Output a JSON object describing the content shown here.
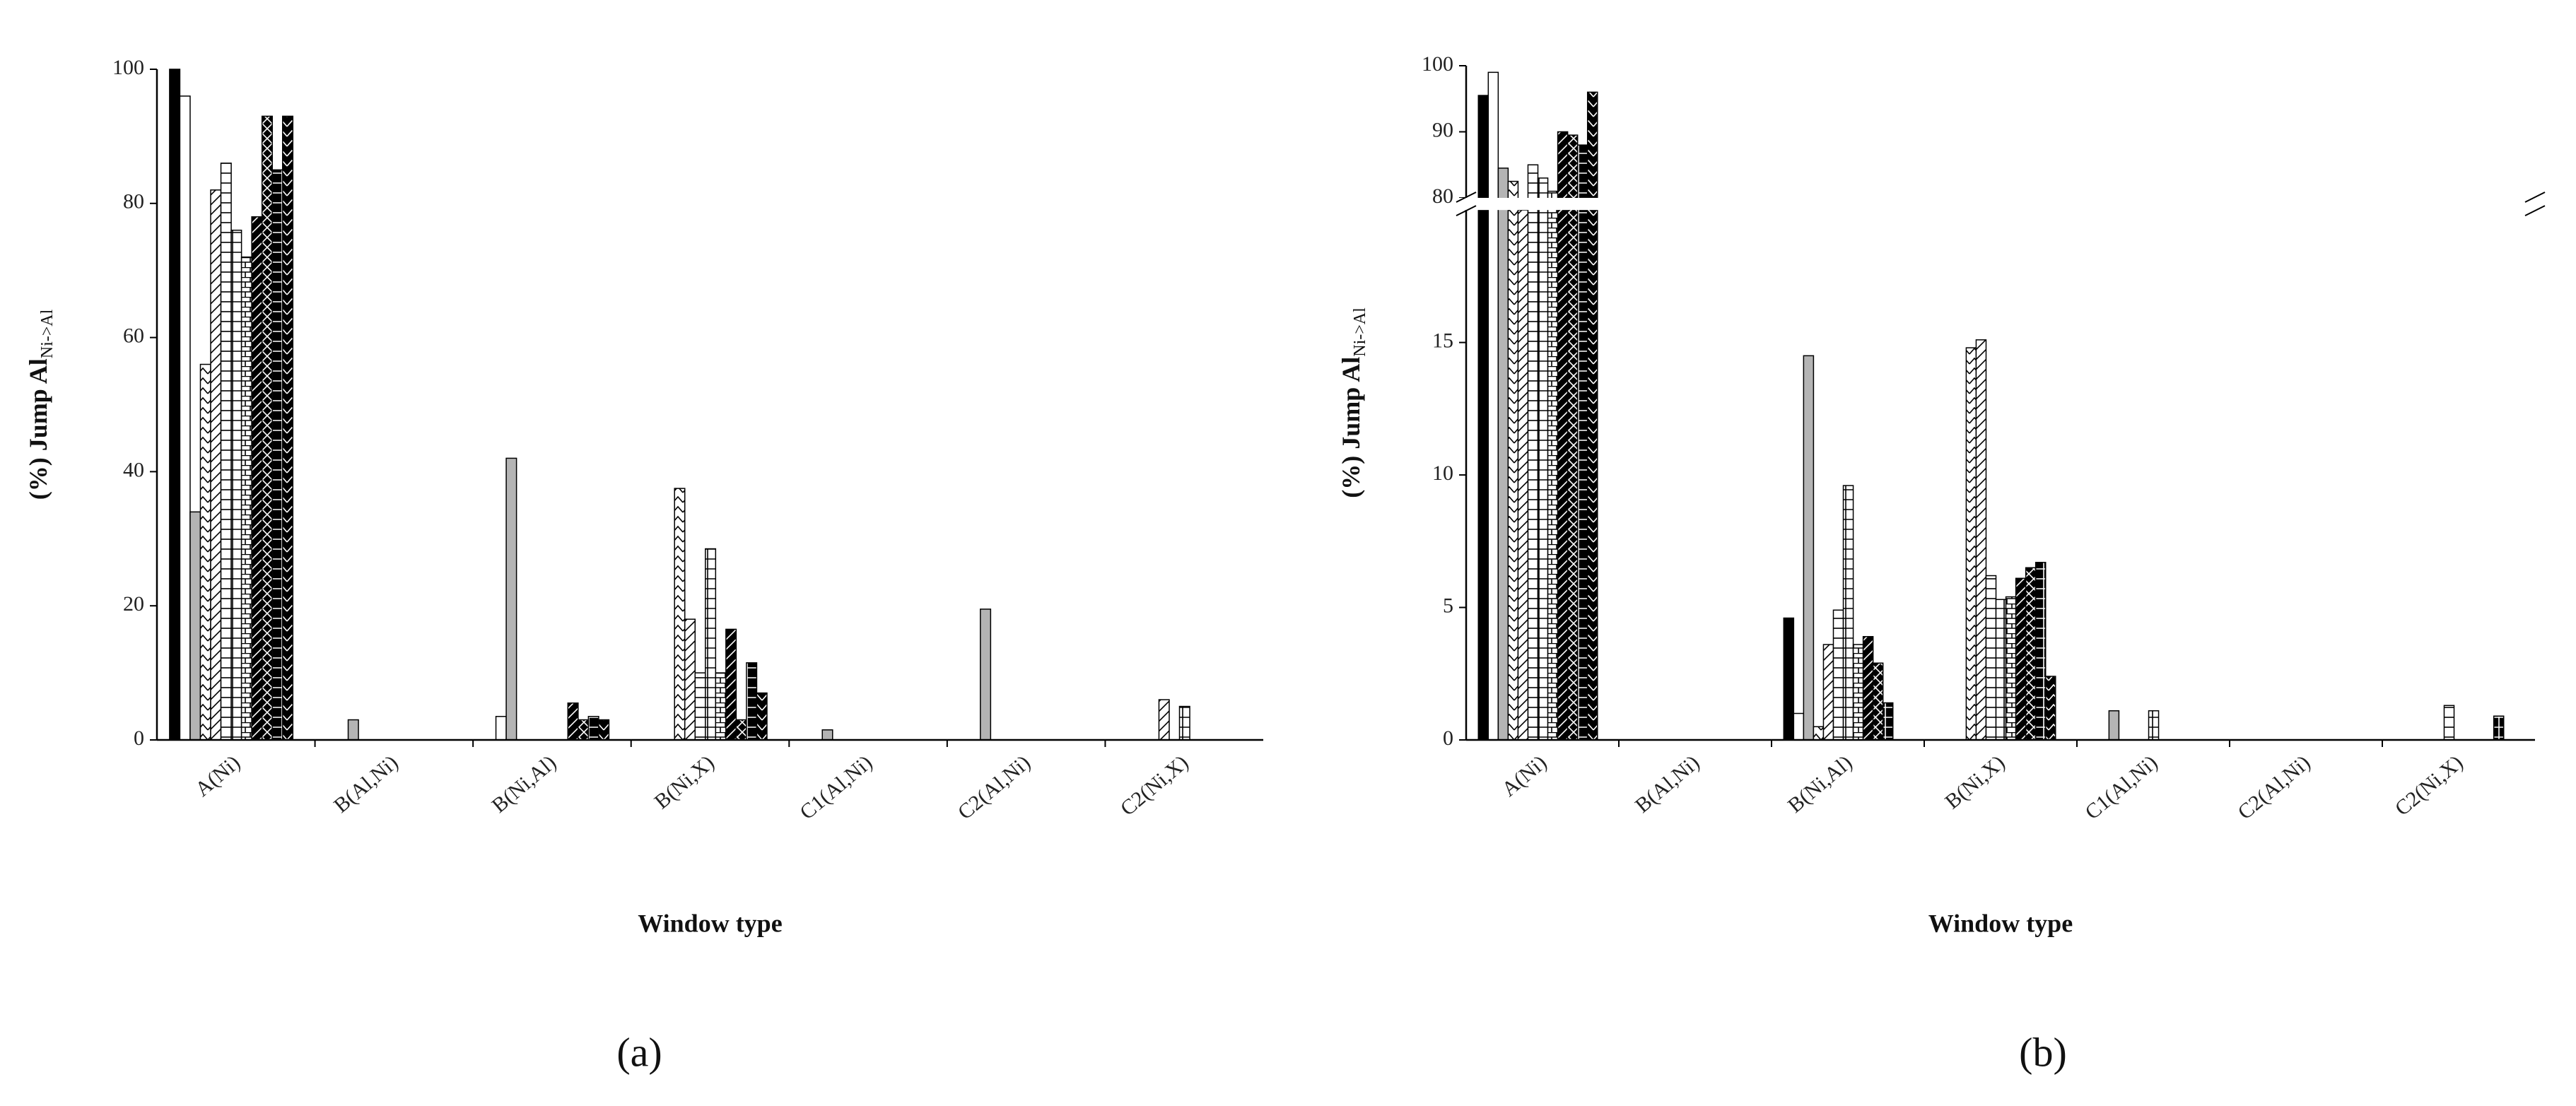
{
  "chart_data": [
    {
      "type": "bar",
      "label": "(a)",
      "xlabel": "Window type",
      "ylabel": "(%) Jump Al",
      "ylabel_sub": "Ni->Al",
      "categories": [
        "A(Ni)",
        "B(Al,Ni)",
        "B(Ni,Al)",
        "B(Ni,X)",
        "C1(Al,Ni)",
        "C2(Al,Ni)",
        "C2(Ni,X)"
      ],
      "ylim": [
        0,
        100
      ],
      "yticks": [
        0,
        20,
        40,
        60,
        80,
        100
      ],
      "series": [
        {
          "color": "#000000",
          "pattern": "none",
          "values": [
            100,
            0,
            0,
            0,
            0,
            0,
            0
          ]
        },
        {
          "color": "#ffffff",
          "pattern": "none",
          "values": [
            96,
            0,
            3.5,
            0,
            0,
            0,
            0
          ]
        },
        {
          "color": "#b4b4b4",
          "pattern": "none",
          "values": [
            34,
            3,
            42,
            0,
            1.5,
            19.5,
            0
          ]
        },
        {
          "color": "#ffffff",
          "pattern": "zigzag",
          "values": [
            56,
            0,
            0,
            37.5,
            0,
            0,
            0
          ]
        },
        {
          "color": "#ffffff",
          "pattern": "diag",
          "values": [
            82,
            0,
            0,
            18,
            0,
            0,
            6
          ]
        },
        {
          "color": "#ffffff",
          "pattern": "hline",
          "values": [
            86,
            0,
            0,
            10,
            0,
            0,
            0
          ]
        },
        {
          "color": "#ffffff",
          "pattern": "grid",
          "values": [
            76,
            0,
            0,
            28.5,
            0,
            0,
            5
          ]
        },
        {
          "color": "#ffffff",
          "pattern": "brick",
          "values": [
            72,
            0,
            0,
            10,
            0,
            0,
            0
          ]
        },
        {
          "color": "#000000",
          "pattern": "diag",
          "values": [
            78,
            0,
            5.5,
            16.5,
            0,
            0,
            0
          ]
        },
        {
          "color": "#000000",
          "pattern": "cross",
          "values": [
            93,
            0,
            3,
            3,
            0,
            0,
            0
          ]
        },
        {
          "color": "#000000",
          "pattern": "grid",
          "values": [
            85,
            0,
            3.5,
            11.5,
            0,
            0,
            0
          ]
        },
        {
          "color": "#000000",
          "pattern": "zigzag",
          "values": [
            93,
            0,
            3,
            7,
            0,
            0,
            0
          ]
        }
      ]
    },
    {
      "type": "bar",
      "label": "(b)",
      "xlabel": "Window type",
      "ylabel": "(%) Jump Al",
      "ylabel_sub": "Ni->Al",
      "categories": [
        "A(Ni)",
        "B(Al,Ni)",
        "B(Ni,Al)",
        "B(Ni,X)",
        "C1(Al,Ni)",
        "C2(Al,Ni)",
        "C2(Ni,X)"
      ],
      "ylim": [
        0,
        100
      ],
      "ybreak": [
        20,
        80
      ],
      "yticks": [
        0,
        5,
        10,
        15,
        80,
        90,
        100
      ],
      "series": [
        {
          "color": "#000000",
          "pattern": "none",
          "values": [
            95.5,
            0,
            4.6,
            0,
            0,
            0,
            0
          ]
        },
        {
          "color": "#ffffff",
          "pattern": "none",
          "values": [
            99,
            0,
            1,
            0,
            0,
            0,
            0
          ]
        },
        {
          "color": "#b4b4b4",
          "pattern": "none",
          "values": [
            84.5,
            0,
            14.5,
            0,
            1.1,
            0,
            0
          ]
        },
        {
          "color": "#ffffff",
          "pattern": "zigzag",
          "values": [
            82.5,
            0,
            0.5,
            14.8,
            0,
            0,
            0
          ]
        },
        {
          "color": "#ffffff",
          "pattern": "diag",
          "values": [
            78,
            0,
            3.6,
            15.1,
            0,
            0,
            0
          ]
        },
        {
          "color": "#ffffff",
          "pattern": "hline",
          "values": [
            85,
            0,
            4.9,
            6.2,
            0,
            0,
            1.3
          ]
        },
        {
          "color": "#ffffff",
          "pattern": "grid",
          "values": [
            83,
            0,
            9.6,
            5.3,
            1.1,
            0,
            0
          ]
        },
        {
          "color": "#ffffff",
          "pattern": "brick",
          "values": [
            81,
            0,
            3.6,
            5.4,
            0,
            0,
            0
          ]
        },
        {
          "color": "#000000",
          "pattern": "diag",
          "values": [
            90,
            0,
            3.9,
            6.1,
            0,
            0,
            0
          ]
        },
        {
          "color": "#000000",
          "pattern": "cross",
          "values": [
            89.5,
            0,
            2.9,
            6.5,
            0,
            0,
            0
          ]
        },
        {
          "color": "#000000",
          "pattern": "grid",
          "values": [
            88,
            0,
            1.4,
            6.7,
            0,
            0,
            0.9
          ]
        },
        {
          "color": "#000000",
          "pattern": "zigzag",
          "values": [
            96,
            0,
            0,
            2.4,
            0,
            0,
            0
          ]
        }
      ]
    }
  ]
}
